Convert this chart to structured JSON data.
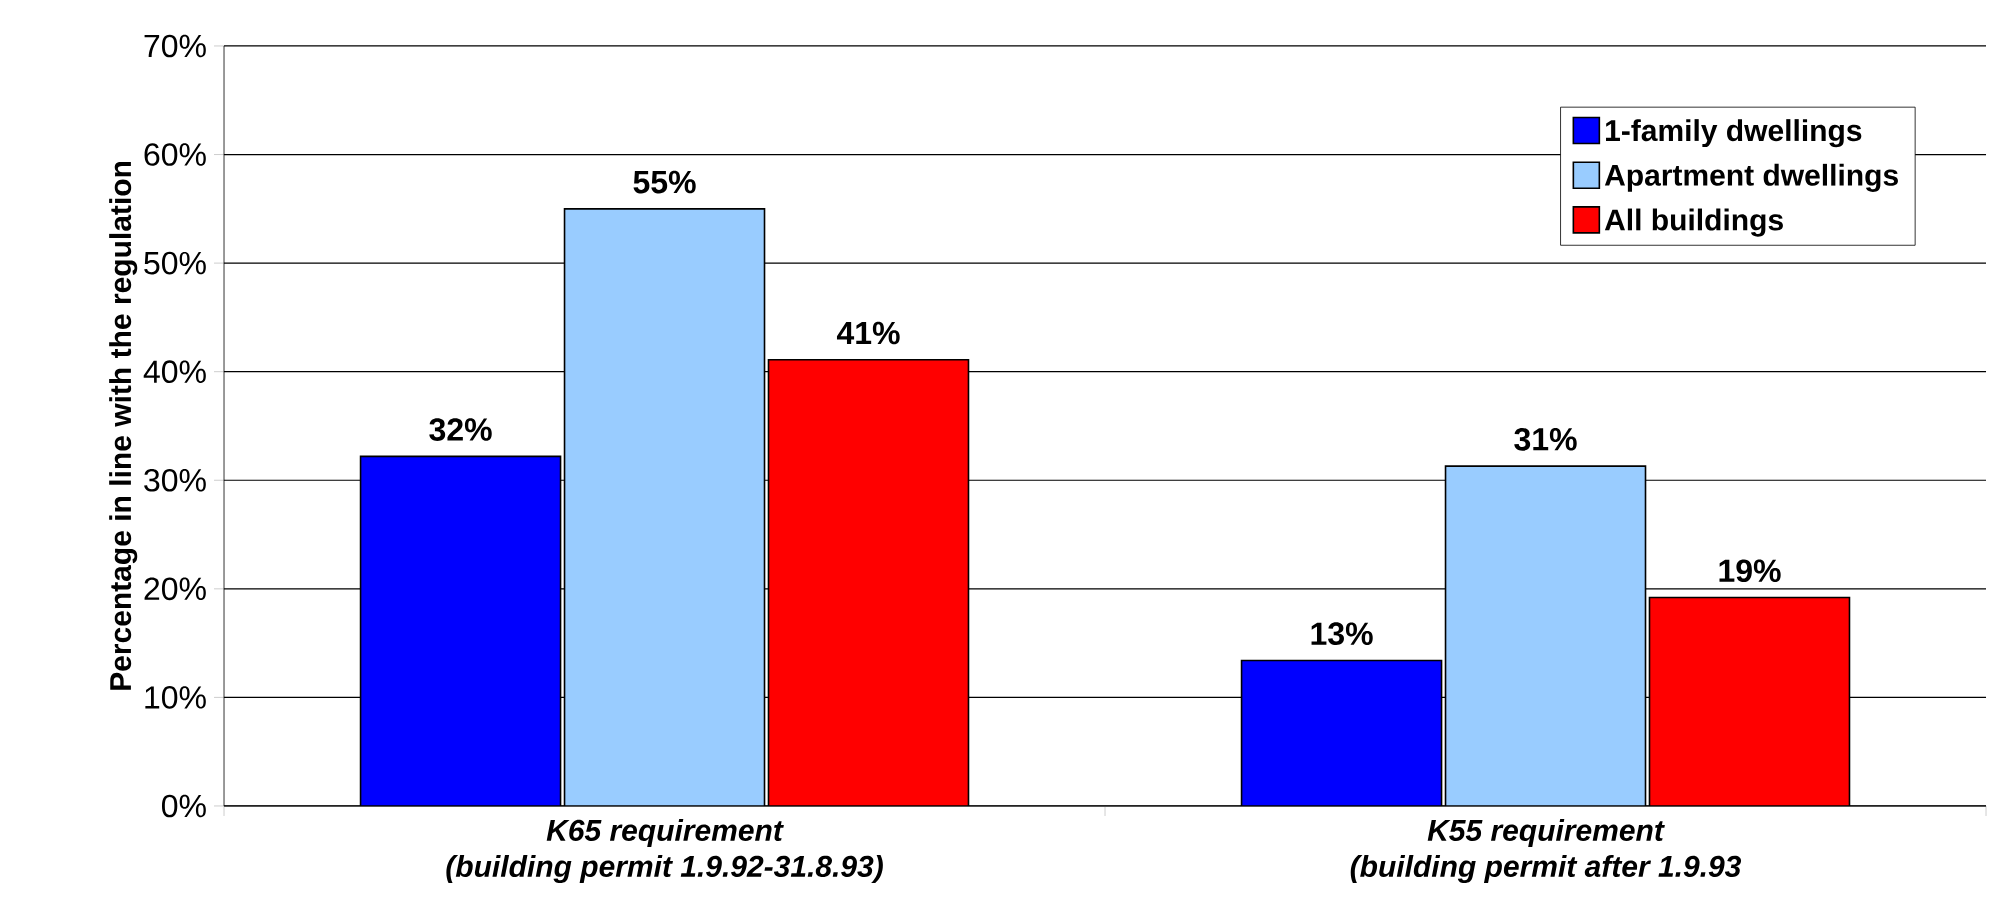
{
  "chart_data": {
    "type": "bar",
    "ylabel": "Percentage in line with the regulation",
    "categories": [
      "K65 requirement\n(building permit 1.9.92-31.8.93)",
      "K55 requirement\n(building permit after 1.9.93"
    ],
    "series": [
      {
        "name": "1-family dwellings",
        "color": "#0000ff",
        "values": [
          32.2,
          13.4
        ],
        "value_labels": [
          "32%",
          "13%"
        ]
      },
      {
        "name": "Apartment dwellings",
        "color": "#99ccff",
        "values": [
          55,
          31.3
        ],
        "value_labels": [
          "55%",
          "31%"
        ]
      },
      {
        "name": "All buildings",
        "color": "#ff0000",
        "values": [
          41.1,
          19.2
        ],
        "value_labels": [
          "41%",
          "19%"
        ]
      }
    ],
    "ylim": [
      0,
      70
    ],
    "yticks": [
      {
        "value": 0,
        "label": "0%"
      },
      {
        "value": 10,
        "label": "10%"
      },
      {
        "value": 20,
        "label": "20%"
      },
      {
        "value": 30,
        "label": "30%"
      },
      {
        "value": 40,
        "label": "40%"
      },
      {
        "value": 50,
        "label": "50%"
      },
      {
        "value": 60,
        "label": "60%"
      },
      {
        "value": 70,
        "label": "70%"
      }
    ],
    "grid": "y",
    "legend": "top right"
  }
}
